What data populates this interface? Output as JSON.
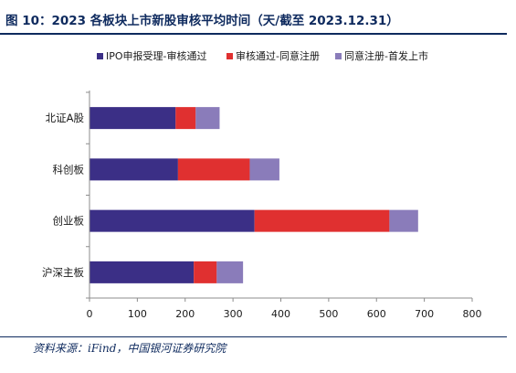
{
  "header": {
    "title": "图 10：2023 各板块上市新股审核平均时间（天/截至 2023.12.31）"
  },
  "footer": {
    "source": "资料来源：iFind，中国银河证券研究院"
  },
  "chart_data": {
    "type": "bar",
    "orientation": "horizontal",
    "stacked": true,
    "title": "",
    "xlabel": "",
    "ylabel": "",
    "categories": [
      "北证A股",
      "科创板",
      "创业板",
      "沪深主板"
    ],
    "series": [
      {
        "name": "IPO申报受理-审核通过",
        "color": "#3b2f86",
        "values": [
          180,
          185,
          345,
          218
        ]
      },
      {
        "name": "审核通过-同意注册",
        "color": "#e03030",
        "values": [
          42,
          150,
          282,
          48
        ]
      },
      {
        "name": "同意注册-首发上市",
        "color": "#8a7cba",
        "values": [
          50,
          62,
          60,
          55
        ]
      }
    ],
    "xlim": [
      0,
      800
    ],
    "xticks": [
      0,
      100,
      200,
      300,
      400,
      500,
      600,
      700,
      800
    ],
    "grid": false,
    "legend_position": "top"
  }
}
